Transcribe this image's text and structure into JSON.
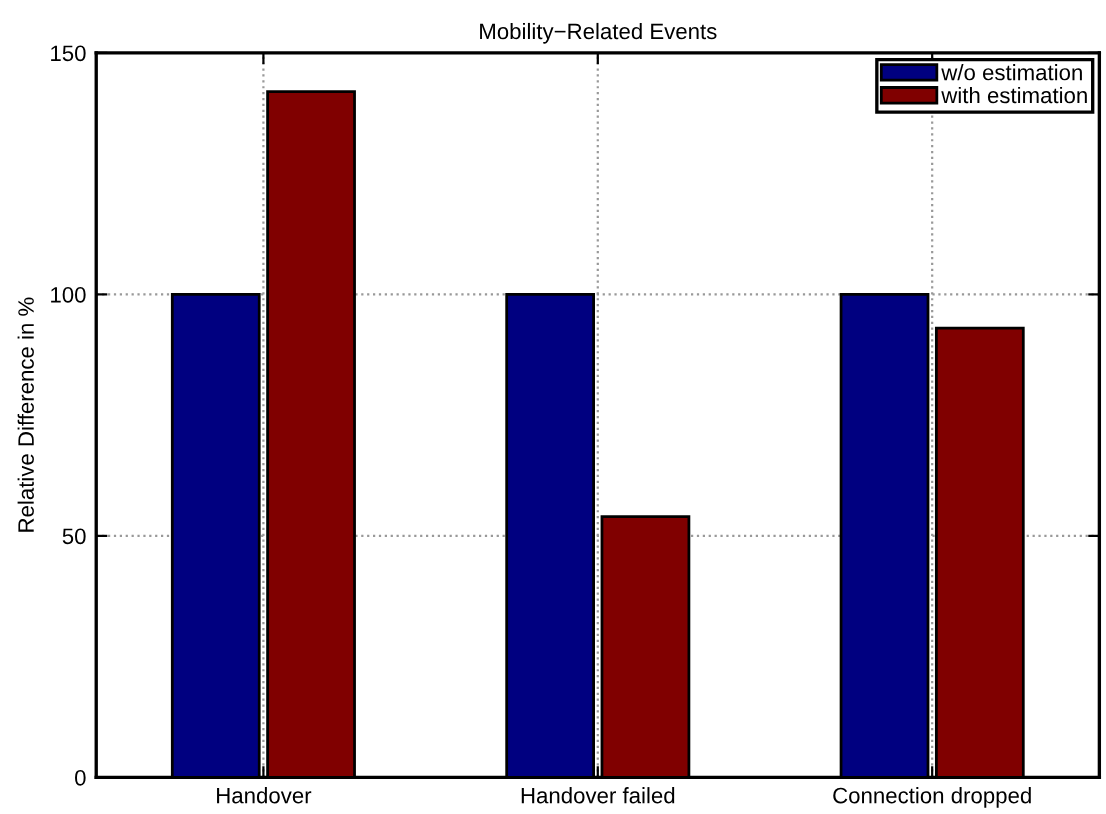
{
  "chart_data": {
    "type": "bar",
    "title": "Mobility−Related Events",
    "ylabel": "Relative Difference in %",
    "categories": [
      "Handover",
      "Handover failed",
      "Connection dropped"
    ],
    "series": [
      {
        "name": "w/o estimation",
        "color": "#000080",
        "values": [
          100,
          100,
          100
        ]
      },
      {
        "name": "with estimation",
        "color": "#800000",
        "values": [
          142,
          54,
          93
        ]
      }
    ],
    "ylim": [
      0,
      150
    ],
    "yticks": [
      0,
      50,
      100,
      150
    ],
    "grid": true,
    "legend": "top right"
  }
}
